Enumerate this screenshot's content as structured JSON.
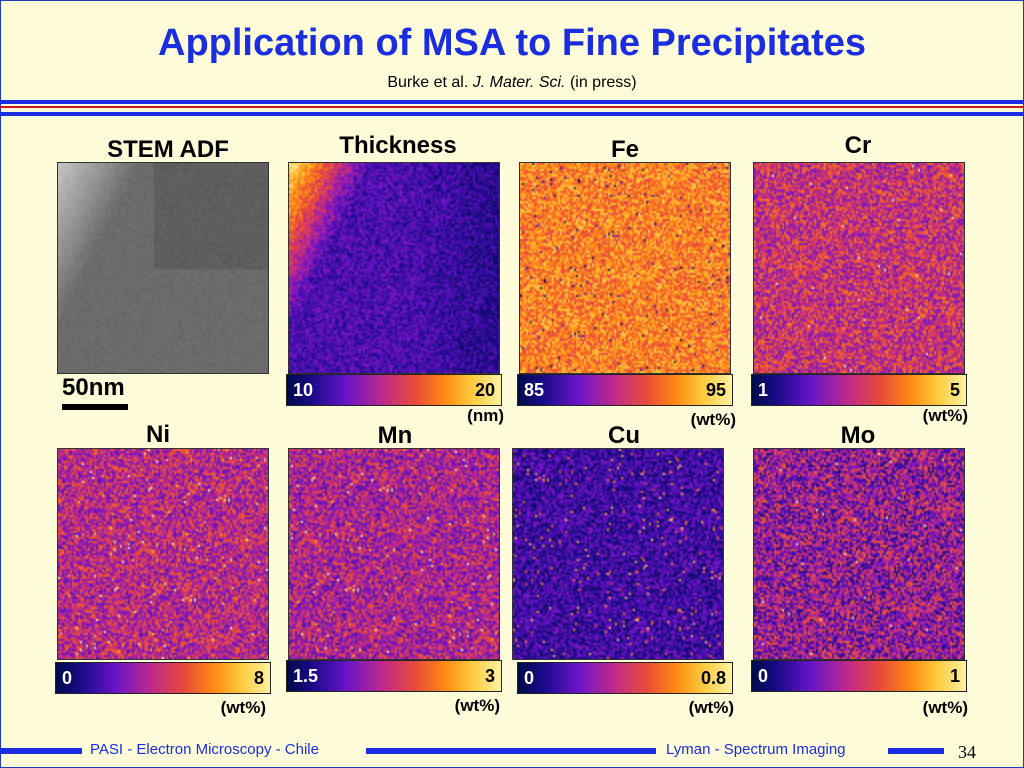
{
  "slide": {
    "title": "Application of MSA to Fine Precipitates",
    "subtitle_prefix": "Burke et al. ",
    "subtitle_journal": "J. Mater. Sci.",
    "subtitle_suffix": " (in press)"
  },
  "scale": {
    "label": "50nm"
  },
  "panels": [
    {
      "label": "STEM ADF"
    },
    {
      "label": "Thickness",
      "min": "10",
      "max": "20",
      "unit": "(nm)"
    },
    {
      "label": "Fe",
      "min": "85",
      "max": "95",
      "unit": "(wt%)"
    },
    {
      "label": "Cr",
      "min": "1",
      "max": "5",
      "unit": "(wt%)"
    },
    {
      "label": "Ni",
      "min": "0",
      "max": "8",
      "unit": "(wt%)"
    },
    {
      "label": "Mn",
      "min": "1.5",
      "max": "3",
      "unit": "(wt%)"
    },
    {
      "label": "Cu",
      "min": "0",
      "max": "0.8",
      "unit": "(wt%)"
    },
    {
      "label": "Mo",
      "min": "0",
      "max": "1",
      "unit": "(wt%)"
    }
  ],
  "footer": {
    "left": "PASI - Electron Microscopy - Chile",
    "right": "Lyman - Spectrum Imaging",
    "page": "34"
  },
  "colors": {
    "accent": "#1a2de0",
    "rule_red": "#cc1a1a",
    "background": "#fffdd9"
  }
}
